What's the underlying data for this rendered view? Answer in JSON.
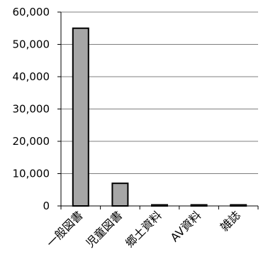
{
  "chart_data": {
    "type": "bar",
    "categories": [
      "一般図書",
      "児童図書",
      "郷土資料",
      "AV資料",
      "雑誌"
    ],
    "values": [
      55000,
      7000,
      0,
      0,
      0
    ],
    "ylim": [
      0,
      60000
    ],
    "yticks": [
      "0",
      "10,000",
      "20,000",
      "30,000",
      "40,000",
      "50,000",
      "60,000"
    ],
    "grid": true,
    "legend": "none",
    "bar_color": "#a6a6a6",
    "bar_outline": "#000000",
    "grid_color": "#7f7f7f"
  }
}
